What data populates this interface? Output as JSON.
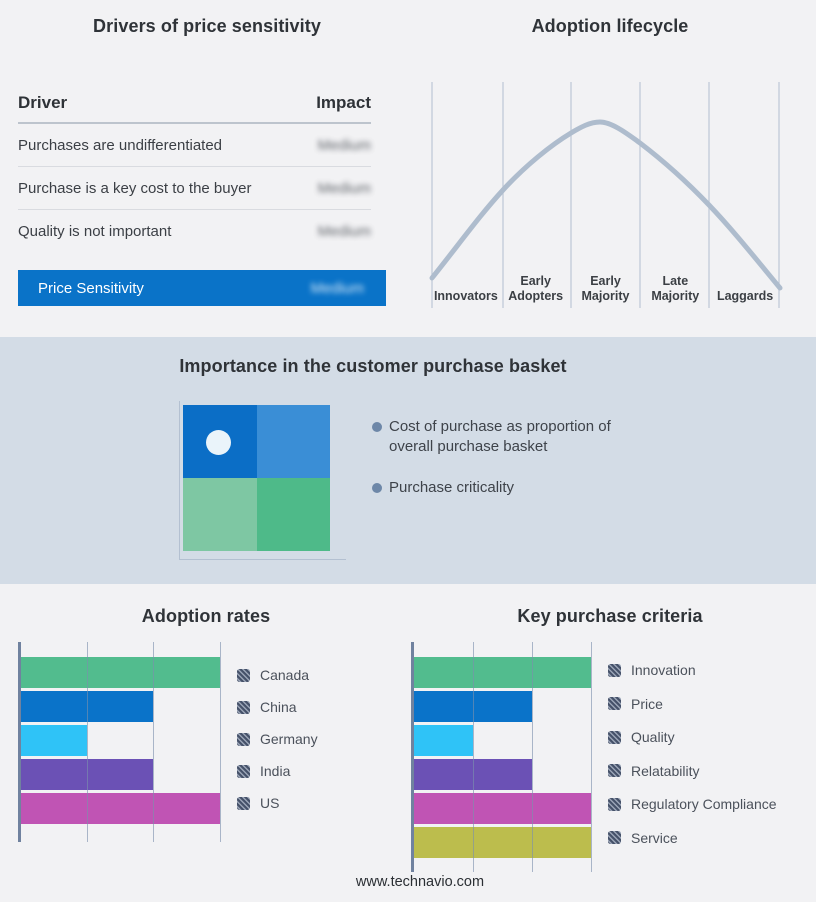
{
  "chart_data": [
    {
      "type": "table",
      "title": "Drivers of price sensitivity",
      "columns": [
        "Driver",
        "Impact"
      ],
      "rows": [
        [
          "Purchases are undifferentiated",
          "Medium"
        ],
        [
          "Purchase is a key cost to the buyer",
          "Medium"
        ],
        [
          "Quality is not important",
          "Medium"
        ]
      ],
      "highlight_row": [
        "Price Sensitivity",
        "Medium"
      ],
      "accent_color": "#0a73c8",
      "impact_values_blurred": true
    },
    {
      "type": "line",
      "title": "Adoption lifecycle",
      "categories": [
        "Innovators",
        "Early Adopters",
        "Early Majority",
        "Late Majority",
        "Laggards"
      ],
      "shape": "bell curve rising from Innovators, peaking at Early Majority, falling to Laggards",
      "color": "#aebccd",
      "grid": "vertical section lines, no y-axis values"
    },
    {
      "type": "bar",
      "title": "Adoption rates",
      "orientation": "horizontal",
      "categories": [
        "Canada",
        "China",
        "Germany",
        "India",
        "US"
      ],
      "values": [
        3,
        2,
        1,
        2,
        3
      ],
      "xlim": [
        0,
        3
      ],
      "colors": [
        "#52bc8e",
        "#0a73c9",
        "#2fc3f7",
        "#6b51b5",
        "#c054b4"
      ],
      "legend_position": "right",
      "legend_swatch_style": "dark diagonal hatch"
    },
    {
      "type": "bar",
      "title": "Key purchase criteria",
      "orientation": "horizontal",
      "categories": [
        "Innovation",
        "Price",
        "Quality",
        "Relatability",
        "Regulatory Compliance",
        "Service"
      ],
      "values": [
        3,
        2,
        1,
        2,
        3,
        3
      ],
      "xlim": [
        0,
        3
      ],
      "colors": [
        "#52bc8e",
        "#0a73c9",
        "#2fc3f7",
        "#6b51b5",
        "#c054b4",
        "#bcbd4d"
      ],
      "legend_position": "right",
      "legend_swatch_style": "dark diagonal hatch"
    }
  ],
  "basket_panel": {
    "title": "Importance in the customer purchase basket",
    "bullets": [
      "Cost of purchase as proportion of overall purchase basket",
      "Purchase criticality"
    ],
    "matrix_colors": {
      "top_left": "#0b6ec6",
      "top_right": "#3a8ed6",
      "bottom_left": "#7ec7a3",
      "bottom_right": "#4eba89"
    },
    "marker": "white dot in top-left quadrant",
    "band_background": "#d3dce6"
  },
  "footer": {
    "website": "www.technavio.com"
  }
}
